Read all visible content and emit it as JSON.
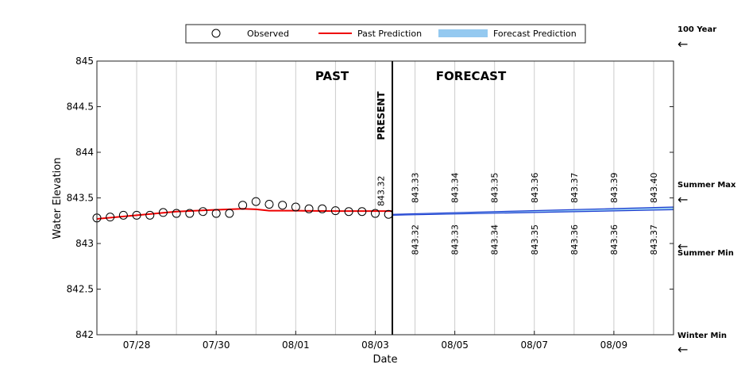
{
  "chart_data": {
    "type": "line",
    "xlabel": "Date",
    "ylabel": "Water Elevation",
    "ylim": [
      842,
      845
    ],
    "y_ticks": [
      "842",
      "842.5",
      "843",
      "843.5",
      "844",
      "844.5",
      "845"
    ],
    "x_range": [
      "07/27 00:00",
      "08/10 12:00"
    ],
    "x_ticks": [
      "07/28",
      "07/30",
      "08/01",
      "08/03",
      "08/05",
      "08/07",
      "08/09"
    ],
    "grid": "vertical",
    "legend": {
      "position": "top",
      "entries": [
        "Observed",
        "Past Prediction",
        "Forecast Prediction"
      ]
    },
    "annotations": {
      "past": "PAST",
      "forecast": "FORECAST",
      "present": "PRESENT"
    },
    "present_date": "08/03 10:00",
    "series": [
      {
        "name": "Observed",
        "style": "open-circle",
        "color": "#000000",
        "x": [
          "07/27 00:00",
          "07/27 08:00",
          "07/27 16:00",
          "07/28 00:00",
          "07/28 08:00",
          "07/28 16:00",
          "07/29 00:00",
          "07/29 08:00",
          "07/29 16:00",
          "07/30 00:00",
          "07/30 08:00",
          "07/30 16:00",
          "07/31 00:00",
          "07/31 08:00",
          "07/31 16:00",
          "08/01 00:00",
          "08/01 08:00",
          "08/01 16:00",
          "08/02 00:00",
          "08/02 08:00",
          "08/02 16:00",
          "08/03 00:00",
          "08/03 08:00"
        ],
        "y": [
          843.28,
          843.29,
          843.31,
          843.31,
          843.31,
          843.34,
          843.33,
          843.33,
          843.35,
          843.33,
          843.33,
          843.42,
          843.46,
          843.43,
          843.42,
          843.4,
          843.38,
          843.38,
          843.36,
          843.35,
          843.35,
          843.33,
          843.32
        ]
      },
      {
        "name": "Past Prediction",
        "style": "line",
        "color": "#ee0000",
        "x": [
          "07/27 00:00",
          "07/28 00:00",
          "07/29 00:00",
          "07/30 00:00",
          "07/30 16:00",
          "07/31 00:00",
          "07/31 08:00",
          "08/01 00:00",
          "08/02 00:00",
          "08/03 00:00",
          "08/03 10:00"
        ],
        "y": [
          843.27,
          843.31,
          843.35,
          843.37,
          843.38,
          843.375,
          843.36,
          843.36,
          843.355,
          843.355,
          843.355
        ]
      },
      {
        "name": "Forecast Prediction",
        "style": "band",
        "color": "#1f3fd1",
        "fill": "#94c9f0",
        "x": [
          "08/03 10:00",
          "08/10 12:00"
        ],
        "upper": [
          843.32,
          843.4
        ],
        "lower": [
          843.31,
          843.37
        ]
      }
    ],
    "forecast_labels": {
      "x": [
        "08/04",
        "08/05",
        "08/06",
        "08/07",
        "08/08",
        "08/09",
        "08/10"
      ],
      "upper": [
        "843.33",
        "843.34",
        "843.35",
        "843.36",
        "843.37",
        "843.39",
        "843.40"
      ],
      "lower": [
        "843.32",
        "843.33",
        "843.34",
        "843.35",
        "843.36",
        "843.36",
        "843.37"
      ]
    },
    "present_label": "843.32",
    "reference_levels": [
      {
        "name": "100 Year"
      },
      {
        "name": "Summer Max",
        "y": 843.5
      },
      {
        "name": "Summer Min",
        "y": 843.0
      },
      {
        "name": "Winter Min",
        "y": 842.0
      }
    ],
    "arrow_glyph": "←"
  }
}
